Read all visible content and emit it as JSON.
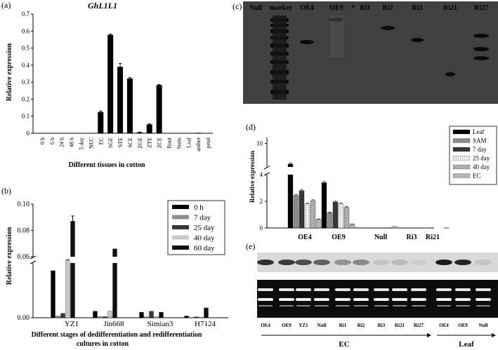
{
  "panel_a": {
    "label": "(a)",
    "title": "GhL1L1",
    "ylabel": "Relative expression",
    "xlabel": "Different tissues in cotton",
    "yticks": [
      "0",
      "0.1",
      "0.2",
      "0.3",
      "0.4",
      "0.5",
      "0.6",
      "0.7"
    ]
  },
  "panel_b": {
    "label": "(b)",
    "ylabel": "Relative expression",
    "xlabel_line1": "Different stages of dedifferentiation and redifferentiation",
    "xlabel_line2": "cultures in cotton",
    "yticks_low": [
      "0.00"
    ],
    "yticks_high": [
      "0.06",
      "0.08",
      "0.10"
    ]
  },
  "panel_c": {
    "label": "(c)",
    "lanes": [
      "Null",
      "marker",
      "OE4",
      "OE9",
      "*",
      "Ri1",
      "Ri2",
      "Ri3",
      "Ri21",
      "Ri27"
    ]
  },
  "panel_d": {
    "label": "(d)",
    "ylabel": "Relative expression",
    "yticks_low": [
      "0",
      "2",
      "4"
    ],
    "yticks_high": [
      "10"
    ]
  },
  "panel_e": {
    "label": "(e)",
    "lanes": [
      "OE4",
      "OE9",
      "YZ1",
      "Null",
      "Ri1",
      "Ri2",
      "Ri3",
      "Ri21",
      "Ri27",
      "OE4",
      "OE9",
      "Null"
    ],
    "group_ec": "EC",
    "group_leaf": "Leaf"
  },
  "chart_data": [
    {
      "type": "bar",
      "id": "a",
      "title": "GhL1L1",
      "xlabel": "Different tissues in cotton",
      "ylabel": "Relative expression",
      "ylim": [
        0,
        0.7
      ],
      "categories": [
        "0 h",
        "6 h",
        "24 h",
        "48 h",
        "5 day",
        "NEC",
        "EC",
        "SGE",
        "STE",
        "SCE",
        "ZGE",
        "ZTE",
        "ZCE",
        "Root",
        "Stem",
        "Leaf",
        "anther",
        "petal"
      ],
      "values": [
        0,
        0,
        0,
        0,
        0,
        0,
        0.125,
        0.578,
        0.39,
        0.322,
        0.006,
        0.052,
        0.283,
        0.002,
        0.001,
        0.001,
        0.003,
        0.001
      ],
      "errors": [
        0,
        0,
        0,
        0,
        0,
        0,
        0.006,
        0.004,
        0.02,
        0.005,
        0.001,
        0.004,
        0.003,
        0,
        0,
        0,
        0,
        0
      ]
    },
    {
      "type": "bar",
      "id": "b",
      "xlabel": "Different stages of dedifferentiation and redifferentiation cultures in cotton",
      "ylabel": "Relative expression",
      "categories": [
        "YZ1",
        "Jin668",
        "Simian3",
        "H7124"
      ],
      "series": [
        {
          "name": "0 h",
          "color": "#000000",
          "values": [
            0.0215,
            0.003,
            0.0025,
            0.0008
          ]
        },
        {
          "name": "7 day",
          "color": "#8c8c8c",
          "values": [
            0.0008,
            0.0005,
            0.0004,
            0.0002
          ]
        },
        {
          "name": "25 day",
          "color": "#383838",
          "values": [
            0.002,
            0.0005,
            0.003,
            0.0004
          ]
        },
        {
          "name": "40 day",
          "color": "#c8c8c8",
          "values": [
            0.042,
            0.003,
            0.0005,
            0.0003
          ]
        },
        {
          "name": "60 day",
          "color": "#101010",
          "values": [
            0.087,
            0.066,
            0.0025,
            0.0045
          ]
        }
      ]
    },
    {
      "type": "bar",
      "id": "d",
      "ylabel": "Relative expression",
      "categories": [
        "OE4",
        "OE9",
        "Null",
        "Ri3",
        "Ri21"
      ],
      "series": [
        {
          "name": "Leaf",
          "color": "#000000",
          "values": [
            6.5,
            3.4,
            0,
            0,
            0
          ]
        },
        {
          "name": "SAM",
          "color": "#8c8c8c",
          "values": [
            2.45,
            1.15,
            0,
            0,
            0
          ]
        },
        {
          "name": "7 day",
          "color": "#383838",
          "values": [
            2.8,
            1.95,
            0,
            0,
            0
          ]
        },
        {
          "name": "25 day",
          "color": "#e0e0e0",
          "values": [
            1.8,
            1.8,
            0,
            0,
            0
          ]
        },
        {
          "name": "40 day",
          "color": "#a0a0a0",
          "values": [
            2.05,
            1.55,
            0,
            0,
            0
          ]
        },
        {
          "name": "EC",
          "color": "#b4b4b4",
          "values": [
            0.65,
            0.28,
            0.12,
            0.03,
            0.03
          ]
        }
      ]
    }
  ]
}
